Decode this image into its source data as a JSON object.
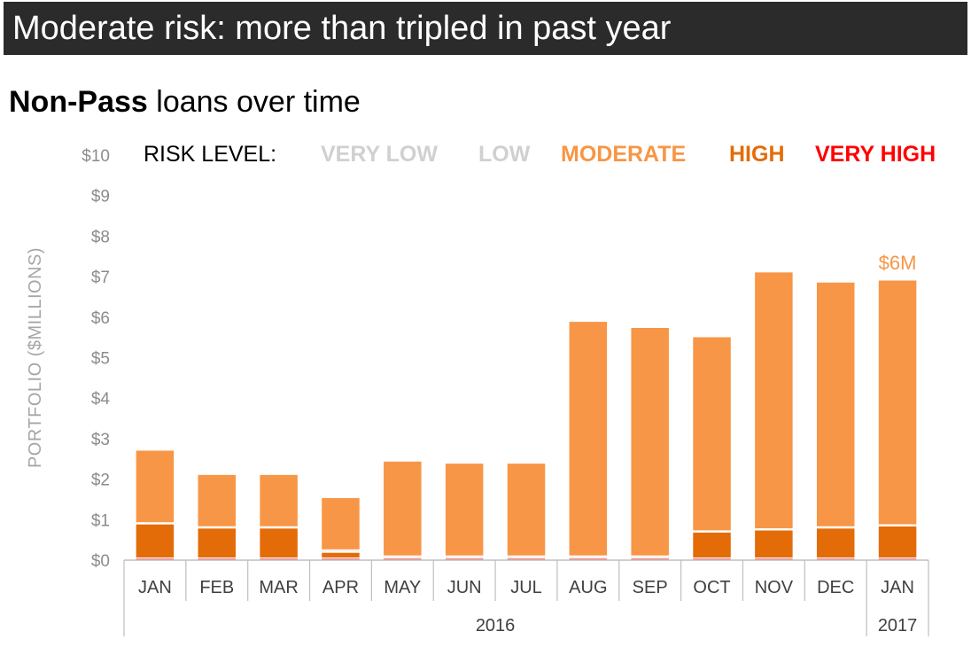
{
  "banner": {
    "text": "Moderate risk: more than tripled in past year"
  },
  "subtitle": {
    "bold": "Non-Pass",
    "rest": " loans over time"
  },
  "colors": {
    "very_low": "#d9d9d9",
    "low": "#cccccc",
    "moderate": "#f79646",
    "high": "#e36c09",
    "very_high": "#ff0000",
    "moderate_text": "#f79646",
    "high_text": "#e36c09",
    "very_high_text": "#ff0000"
  },
  "legend": {
    "label": "RISK LEVEL:",
    "items": [
      {
        "name": "VERY LOW",
        "color": "#d0d0d0"
      },
      {
        "name": "LOW",
        "color": "#d0d0d0"
      },
      {
        "name": "MODERATE",
        "color": "#f79646"
      },
      {
        "name": "HIGH",
        "color": "#e36c09"
      },
      {
        "name": "VERY HIGH",
        "color": "#ff0000"
      }
    ]
  },
  "chart_data": {
    "type": "bar",
    "stacked": true,
    "title": "Non-Pass loans over time",
    "ylabel": "PORTFOLIO ($MILLIONS)",
    "ylim": [
      0,
      10
    ],
    "yticks": [
      "$0",
      "$1",
      "$2",
      "$3",
      "$4",
      "$5",
      "$6",
      "$7",
      "$8",
      "$9",
      "$10"
    ],
    "categories": [
      "JAN",
      "FEB",
      "MAR",
      "APR",
      "MAY",
      "JUN",
      "JUL",
      "AUG",
      "SEP",
      "OCT",
      "NOV",
      "DEC",
      "JAN"
    ],
    "year_groups": [
      {
        "label": "2016",
        "count": 12
      },
      {
        "label": "2017",
        "count": 1
      }
    ],
    "series": [
      {
        "name": "VERY HIGH",
        "color": "#ff0000",
        "values": [
          0.05,
          0.05,
          0.05,
          0.05,
          0.05,
          0.05,
          0.05,
          0.05,
          0.05,
          0.05,
          0.05,
          0.05,
          0.05
        ]
      },
      {
        "name": "HIGH",
        "color": "#e36c09",
        "values": [
          0.85,
          0.75,
          0.75,
          0.15,
          0.0,
          0.0,
          0.0,
          0.0,
          0.0,
          0.65,
          0.7,
          0.75,
          0.8
        ]
      },
      {
        "name": "LOW",
        "color": "#d9d9d9",
        "values": [
          0.02,
          0.02,
          0.02,
          0.05,
          0.05,
          0.05,
          0.05,
          0.05,
          0.05,
          0.02,
          0.02,
          0.02,
          0.02
        ]
      },
      {
        "name": "MODERATE",
        "color": "#f79646",
        "values": [
          1.8,
          1.3,
          1.3,
          1.3,
          2.35,
          2.3,
          2.3,
          5.8,
          5.65,
          4.8,
          6.35,
          6.05,
          6.05
        ]
      }
    ],
    "annotation": {
      "text": "$6M",
      "category_index": 12,
      "color": "#f79646"
    },
    "grid": false,
    "legend_position": "top"
  }
}
